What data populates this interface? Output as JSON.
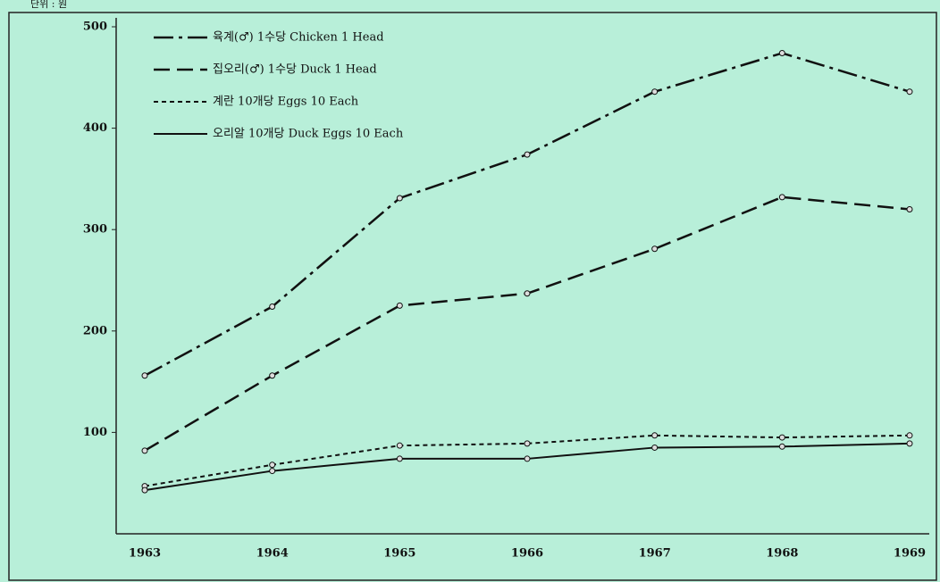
{
  "chart_data": {
    "type": "line",
    "unit": "단위 : 원",
    "categories": [
      "1963",
      "1964",
      "1965",
      "1966",
      "1967",
      "1968",
      "1969"
    ],
    "ylim": [
      0,
      500
    ],
    "yticks": [
      100,
      200,
      300,
      400,
      500
    ],
    "series": [
      {
        "name": "육계(♂) 1수당 Chicken 1 Head",
        "color": "#111111",
        "style": "dashdot",
        "values": [
          156,
          224,
          331,
          374,
          436,
          474,
          436
        ]
      },
      {
        "name": "집오리(♂) 1수당 Duck 1 Head",
        "color": "#111111",
        "style": "dashed",
        "values": [
          82,
          156,
          225,
          237,
          281,
          332,
          320
        ]
      },
      {
        "name": "계란 10개당 Eggs 10 Each",
        "color": "#111111",
        "style": "dotted",
        "values": [
          47,
          68,
          87,
          89,
          97,
          95,
          97
        ]
      },
      {
        "name": "오리알 10개당 Duck Eggs 10 Each",
        "color": "#111111",
        "style": "solid",
        "values": [
          43,
          62,
          74,
          74,
          85,
          86,
          89
        ]
      }
    ]
  }
}
